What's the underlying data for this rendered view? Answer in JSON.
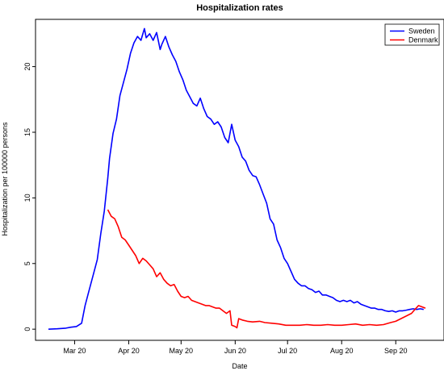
{
  "chart_data": {
    "type": "line",
    "title": "Hospitalization rates",
    "xlabel": "Date",
    "ylabel": "Hospitalization per 100000 persons",
    "x_ticks": [
      "Mar 20",
      "Apr 20",
      "May 20",
      "Jun 20",
      "Jul 20",
      "Aug 20",
      "Sep 20"
    ],
    "y_ticks": [
      0,
      5,
      10,
      15,
      20
    ],
    "ylim": [
      -0.85,
      23.6
    ],
    "legend_position": "top-right",
    "grid": false,
    "series": [
      {
        "name": "Sweden",
        "color": "#0000ff",
        "points": [
          [
            "2020-02-15",
            0.0
          ],
          [
            "2020-02-20",
            0.03
          ],
          [
            "2020-02-25",
            0.08
          ],
          [
            "2020-02-28",
            0.15
          ],
          [
            "2020-03-02",
            0.2
          ],
          [
            "2020-03-05",
            0.45
          ],
          [
            "2020-03-07",
            1.8
          ],
          [
            "2020-03-09",
            2.8
          ],
          [
            "2020-03-12",
            4.3
          ],
          [
            "2020-03-14",
            5.3
          ],
          [
            "2020-03-16",
            7.3
          ],
          [
            "2020-03-18",
            9.0
          ],
          [
            "2020-03-20",
            11.5
          ],
          [
            "2020-03-21",
            13.0
          ],
          [
            "2020-03-23",
            14.9
          ],
          [
            "2020-03-25",
            16.0
          ],
          [
            "2020-03-27",
            17.8
          ],
          [
            "2020-03-29",
            18.8
          ],
          [
            "2020-03-31",
            19.8
          ],
          [
            "2020-04-02",
            21.0
          ],
          [
            "2020-04-04",
            21.8
          ],
          [
            "2020-04-06",
            22.3
          ],
          [
            "2020-04-08",
            22.0
          ],
          [
            "2020-04-10",
            22.9
          ],
          [
            "2020-04-11",
            22.2
          ],
          [
            "2020-04-13",
            22.5
          ],
          [
            "2020-04-15",
            22.0
          ],
          [
            "2020-04-17",
            22.6
          ],
          [
            "2020-04-19",
            21.3
          ],
          [
            "2020-04-20",
            21.7
          ],
          [
            "2020-04-22",
            22.3
          ],
          [
            "2020-04-24",
            21.5
          ],
          [
            "2020-04-26",
            20.9
          ],
          [
            "2020-04-28",
            20.4
          ],
          [
            "2020-04-30",
            19.6
          ],
          [
            "2020-05-02",
            19.0
          ],
          [
            "2020-05-04",
            18.2
          ],
          [
            "2020-05-06",
            17.7
          ],
          [
            "2020-05-08",
            17.2
          ],
          [
            "2020-05-10",
            17.0
          ],
          [
            "2020-05-12",
            17.6
          ],
          [
            "2020-05-14",
            16.8
          ],
          [
            "2020-05-16",
            16.2
          ],
          [
            "2020-05-18",
            16.0
          ],
          [
            "2020-05-20",
            15.6
          ],
          [
            "2020-05-22",
            15.8
          ],
          [
            "2020-05-24",
            15.4
          ],
          [
            "2020-05-26",
            14.6
          ],
          [
            "2020-05-28",
            14.2
          ],
          [
            "2020-05-30",
            15.6
          ],
          [
            "2020-06-01",
            14.4
          ],
          [
            "2020-06-03",
            13.9
          ],
          [
            "2020-06-05",
            13.1
          ],
          [
            "2020-06-07",
            12.8
          ],
          [
            "2020-06-09",
            12.1
          ],
          [
            "2020-06-11",
            11.7
          ],
          [
            "2020-06-13",
            11.6
          ],
          [
            "2020-06-15",
            11.0
          ],
          [
            "2020-06-17",
            10.3
          ],
          [
            "2020-06-19",
            9.6
          ],
          [
            "2020-06-21",
            8.4
          ],
          [
            "2020-06-23",
            8.0
          ],
          [
            "2020-06-25",
            6.8
          ],
          [
            "2020-06-27",
            6.2
          ],
          [
            "2020-06-29",
            5.4
          ],
          [
            "2020-07-01",
            5.0
          ],
          [
            "2020-07-03",
            4.4
          ],
          [
            "2020-07-05",
            3.8
          ],
          [
            "2020-07-07",
            3.5
          ],
          [
            "2020-07-09",
            3.3
          ],
          [
            "2020-07-11",
            3.3
          ],
          [
            "2020-07-13",
            3.1
          ],
          [
            "2020-07-15",
            3.0
          ],
          [
            "2020-07-17",
            2.8
          ],
          [
            "2020-07-19",
            2.9
          ],
          [
            "2020-07-21",
            2.6
          ],
          [
            "2020-07-23",
            2.6
          ],
          [
            "2020-07-25",
            2.5
          ],
          [
            "2020-07-27",
            2.4
          ],
          [
            "2020-07-29",
            2.2
          ],
          [
            "2020-07-31",
            2.1
          ],
          [
            "2020-08-02",
            2.2
          ],
          [
            "2020-08-04",
            2.1
          ],
          [
            "2020-08-06",
            2.2
          ],
          [
            "2020-08-08",
            2.0
          ],
          [
            "2020-08-10",
            2.1
          ],
          [
            "2020-08-12",
            1.9
          ],
          [
            "2020-08-14",
            1.8
          ],
          [
            "2020-08-16",
            1.7
          ],
          [
            "2020-08-18",
            1.6
          ],
          [
            "2020-08-20",
            1.6
          ],
          [
            "2020-08-22",
            1.5
          ],
          [
            "2020-08-24",
            1.5
          ],
          [
            "2020-08-26",
            1.4
          ],
          [
            "2020-08-28",
            1.35
          ],
          [
            "2020-08-30",
            1.4
          ],
          [
            "2020-09-01",
            1.3
          ],
          [
            "2020-09-03",
            1.4
          ],
          [
            "2020-09-05",
            1.4
          ],
          [
            "2020-09-07",
            1.45
          ],
          [
            "2020-09-09",
            1.5
          ],
          [
            "2020-09-11",
            1.55
          ],
          [
            "2020-09-13",
            1.5
          ],
          [
            "2020-09-15",
            1.55
          ],
          [
            "2020-09-17",
            1.5
          ]
        ]
      },
      {
        "name": "Denmark",
        "color": "#ff0000",
        "points": [
          [
            "2020-03-20",
            9.1
          ],
          [
            "2020-03-22",
            8.6
          ],
          [
            "2020-03-24",
            8.4
          ],
          [
            "2020-03-26",
            7.8
          ],
          [
            "2020-03-28",
            7.0
          ],
          [
            "2020-03-30",
            6.8
          ],
          [
            "2020-04-01",
            6.4
          ],
          [
            "2020-04-03",
            6.0
          ],
          [
            "2020-04-05",
            5.6
          ],
          [
            "2020-04-07",
            5.0
          ],
          [
            "2020-04-09",
            5.4
          ],
          [
            "2020-04-11",
            5.2
          ],
          [
            "2020-04-13",
            4.9
          ],
          [
            "2020-04-15",
            4.6
          ],
          [
            "2020-04-17",
            4.0
          ],
          [
            "2020-04-19",
            4.3
          ],
          [
            "2020-04-21",
            3.8
          ],
          [
            "2020-04-23",
            3.5
          ],
          [
            "2020-04-25",
            3.3
          ],
          [
            "2020-04-27",
            3.4
          ],
          [
            "2020-04-29",
            2.9
          ],
          [
            "2020-05-01",
            2.5
          ],
          [
            "2020-05-03",
            2.4
          ],
          [
            "2020-05-05",
            2.5
          ],
          [
            "2020-05-07",
            2.2
          ],
          [
            "2020-05-09",
            2.1
          ],
          [
            "2020-05-11",
            2.0
          ],
          [
            "2020-05-13",
            1.9
          ],
          [
            "2020-05-15",
            1.8
          ],
          [
            "2020-05-17",
            1.8
          ],
          [
            "2020-05-19",
            1.7
          ],
          [
            "2020-05-21",
            1.6
          ],
          [
            "2020-05-23",
            1.6
          ],
          [
            "2020-05-25",
            1.4
          ],
          [
            "2020-05-27",
            1.2
          ],
          [
            "2020-05-29",
            1.4
          ],
          [
            "2020-05-30",
            0.3
          ],
          [
            "2020-06-01",
            0.2
          ],
          [
            "2020-06-02",
            0.1
          ],
          [
            "2020-06-03",
            0.8
          ],
          [
            "2020-06-05",
            0.7
          ],
          [
            "2020-06-08",
            0.6
          ],
          [
            "2020-06-11",
            0.55
          ],
          [
            "2020-06-15",
            0.6
          ],
          [
            "2020-06-18",
            0.5
          ],
          [
            "2020-06-22",
            0.45
          ],
          [
            "2020-06-26",
            0.4
          ],
          [
            "2020-06-30",
            0.3
          ],
          [
            "2020-07-04",
            0.3
          ],
          [
            "2020-07-08",
            0.3
          ],
          [
            "2020-07-12",
            0.35
          ],
          [
            "2020-07-16",
            0.3
          ],
          [
            "2020-07-20",
            0.3
          ],
          [
            "2020-07-24",
            0.35
          ],
          [
            "2020-07-28",
            0.3
          ],
          [
            "2020-08-01",
            0.3
          ],
          [
            "2020-08-05",
            0.35
          ],
          [
            "2020-08-09",
            0.4
          ],
          [
            "2020-08-13",
            0.3
          ],
          [
            "2020-08-17",
            0.35
          ],
          [
            "2020-08-21",
            0.3
          ],
          [
            "2020-08-25",
            0.35
          ],
          [
            "2020-08-29",
            0.5
          ],
          [
            "2020-09-01",
            0.6
          ],
          [
            "2020-09-04",
            0.8
          ],
          [
            "2020-09-07",
            1.0
          ],
          [
            "2020-09-10",
            1.2
          ],
          [
            "2020-09-12",
            1.5
          ],
          [
            "2020-09-14",
            1.8
          ],
          [
            "2020-09-16",
            1.7
          ],
          [
            "2020-09-18",
            1.6
          ]
        ]
      }
    ]
  }
}
